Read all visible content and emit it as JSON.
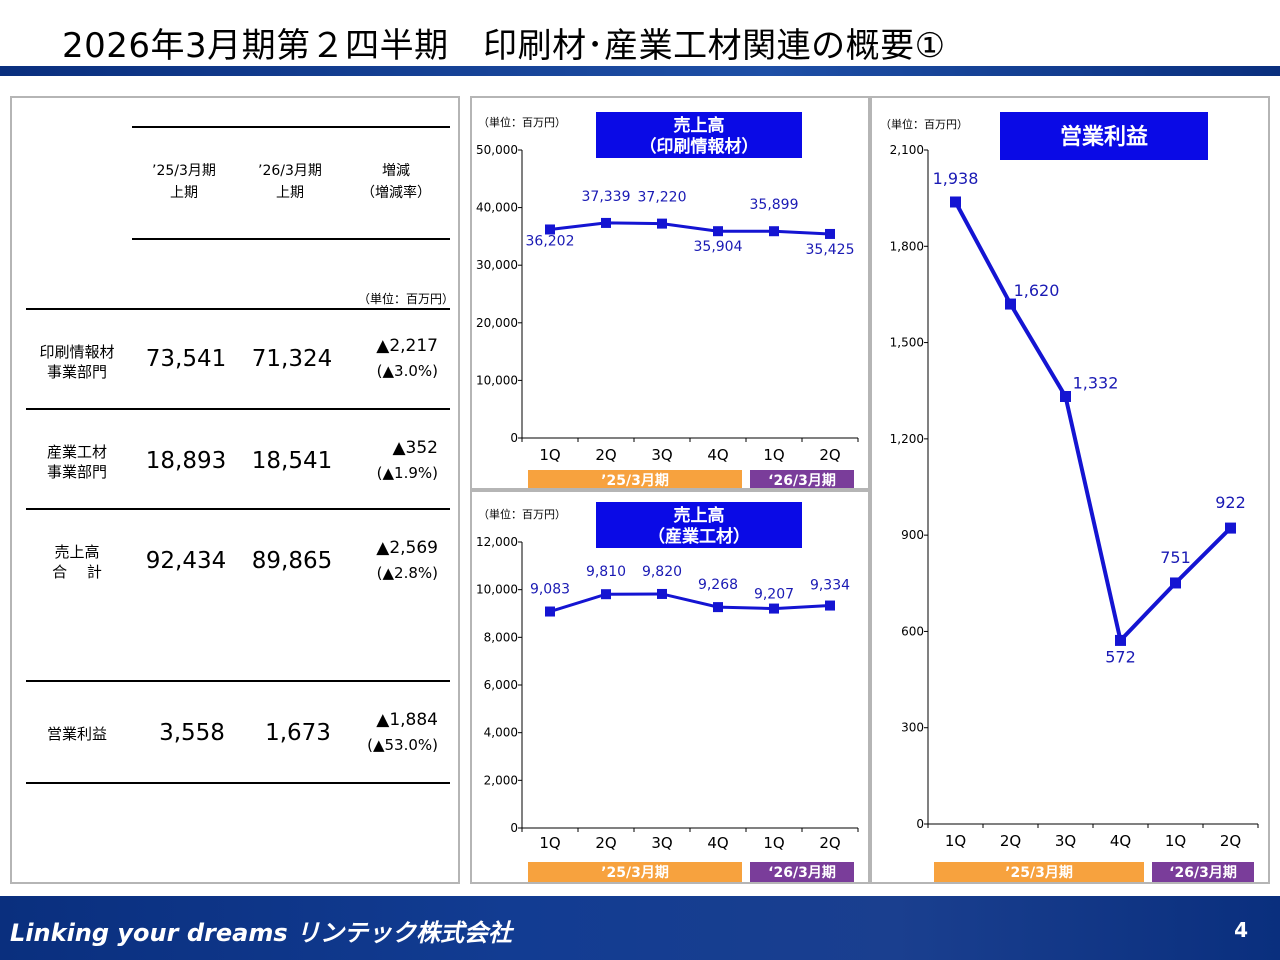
{
  "page": {
    "title": "2026年3月期第２四半期　印刷材･産業工材関連の概要①",
    "footer_slogan": "Linking your dreams  リンテック株式会社",
    "page_number": "4"
  },
  "table": {
    "header": {
      "col1_line1": "’25/3月期",
      "col1_line2": "上期",
      "col2_line1": "’26/3月期",
      "col2_line2": "上期",
      "col3_line1": "増減",
      "col3_line2": "（増減率）"
    },
    "unit": "（単位：百万円）",
    "rows": [
      {
        "label_line1": "印刷情報材",
        "label_line2": "事業部門",
        "prev": "73,541",
        "curr": "71,324",
        "diff": "▲2,217",
        "rate": "(▲3.0%)"
      },
      {
        "label_line1": "産業工材",
        "label_line2": "事業部門",
        "prev": "18,893",
        "curr": "18,541",
        "diff": "▲352",
        "rate": "(▲1.9%)"
      },
      {
        "label_line1": "売上高",
        "label_line2": "合　 計",
        "prev": "92,434",
        "curr": "89,865",
        "diff": "▲2,569",
        "rate": "(▲2.8%)"
      },
      {
        "label_line1": "営業利益",
        "label_line2": "",
        "prev": "3,558",
        "curr": "1,673",
        "diff": "▲1,884",
        "rate": "(▲53.0%)"
      }
    ]
  },
  "colors": {
    "series": "#1414d2",
    "title_box": "#0a0ae6",
    "period_prev": "#f7a23e",
    "period_curr": "#7a3d9a"
  },
  "chart_data": [
    {
      "type": "line",
      "title_line1": "売上高",
      "title_line2": "（印刷情報材）",
      "unit": "（単位：百万円）",
      "categories": [
        "1Q",
        "2Q",
        "3Q",
        "4Q",
        "1Q",
        "2Q"
      ],
      "values": [
        36202,
        37339,
        37220,
        35904,
        35899,
        35425
      ],
      "value_labels": [
        "36,202",
        "37,339",
        "37,220",
        "35,904",
        "35,899",
        "35,425"
      ],
      "ylim": [
        0,
        50000
      ],
      "yticks": [
        0,
        10000,
        20000,
        30000,
        40000,
        50000
      ],
      "ytick_labels": [
        "0",
        "10,000",
        "20,000",
        "30,000",
        "40,000",
        "50,000"
      ],
      "periods": [
        "’25/3月期",
        "‘26/3月期"
      ]
    },
    {
      "type": "line",
      "title_line1": "売上高",
      "title_line2": "（産業工材）",
      "unit": "（単位：百万円）",
      "categories": [
        "1Q",
        "2Q",
        "3Q",
        "4Q",
        "1Q",
        "2Q"
      ],
      "values": [
        9083,
        9810,
        9820,
        9268,
        9207,
        9334
      ],
      "value_labels": [
        "9,083",
        "9,810",
        "9,820",
        "9,268",
        "9,207",
        "9,334"
      ],
      "ylim": [
        0,
        12000
      ],
      "yticks": [
        0,
        2000,
        4000,
        6000,
        8000,
        10000,
        12000
      ],
      "ytick_labels": [
        "0",
        "2,000",
        "4,000",
        "6,000",
        "8,000",
        "10,000",
        "12,000"
      ],
      "periods": [
        "’25/3月期",
        "‘26/3月期"
      ]
    },
    {
      "type": "line",
      "title_line1": "営業利益",
      "title_line2": "",
      "unit": "（単位：百万円）",
      "categories": [
        "1Q",
        "2Q",
        "3Q",
        "4Q",
        "1Q",
        "2Q"
      ],
      "values": [
        1938,
        1620,
        1332,
        572,
        751,
        922
      ],
      "value_labels": [
        "1,938",
        "1,620",
        "1,332",
        "572",
        "751",
        "922"
      ],
      "ylim": [
        0,
        2100
      ],
      "yticks": [
        0,
        300,
        600,
        900,
        1200,
        1500,
        1800,
        2100
      ],
      "ytick_labels": [
        "0",
        "300",
        "600",
        "900",
        "1,200",
        "1,500",
        "1,800",
        "2,100"
      ],
      "periods": [
        "’25/3月期",
        "‘26/3月期"
      ]
    }
  ]
}
